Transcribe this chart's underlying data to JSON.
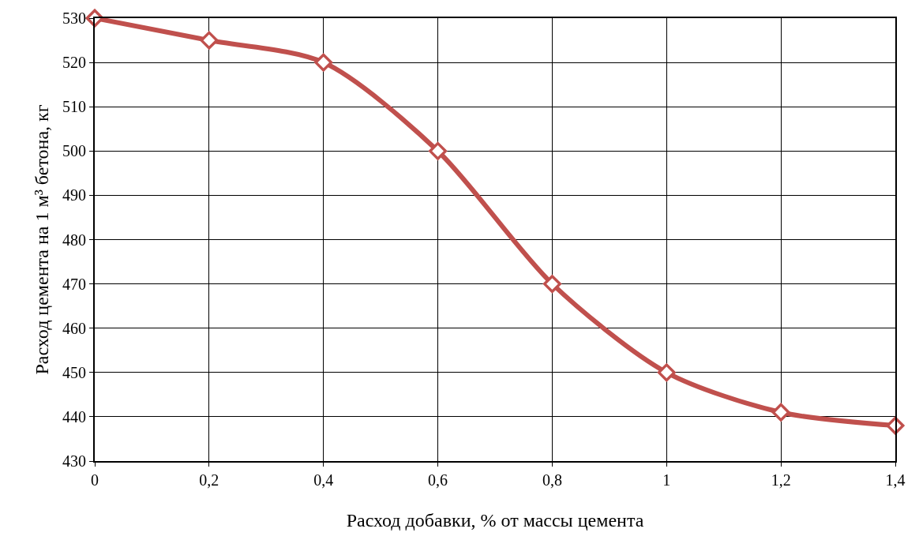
{
  "chart_data": {
    "type": "line",
    "xlabel": "Расход добавки, % от массы цемента",
    "ylabel": "Расход цемента на 1 м³ бетона, кг",
    "x": [
      0,
      0.2,
      0.4,
      0.6,
      0.8,
      1,
      1.2,
      1.4
    ],
    "series": [
      {
        "color": "#c0504d",
        "values": [
          530,
          525,
          520,
          500,
          470,
          450,
          441,
          438
        ]
      }
    ],
    "xlim": [
      0,
      1.4
    ],
    "xticks": [
      0,
      {
        "value": 0.2,
        "label": "0,2"
      },
      {
        "value": 0.4,
        "label": "0,4"
      },
      {
        "value": 0.6,
        "label": "0,6"
      },
      {
        "value": 0.8,
        "label": "0,8"
      },
      1,
      {
        "value": 1.2,
        "label": "1,2"
      },
      {
        "value": 1.4,
        "label": "1,4"
      }
    ],
    "ylim": [
      430,
      530
    ],
    "yticks": [
      430,
      440,
      450,
      460,
      470,
      480,
      490,
      500,
      510,
      520,
      530
    ],
    "grid": true,
    "marker": "diamond",
    "line_style": "solid"
  }
}
